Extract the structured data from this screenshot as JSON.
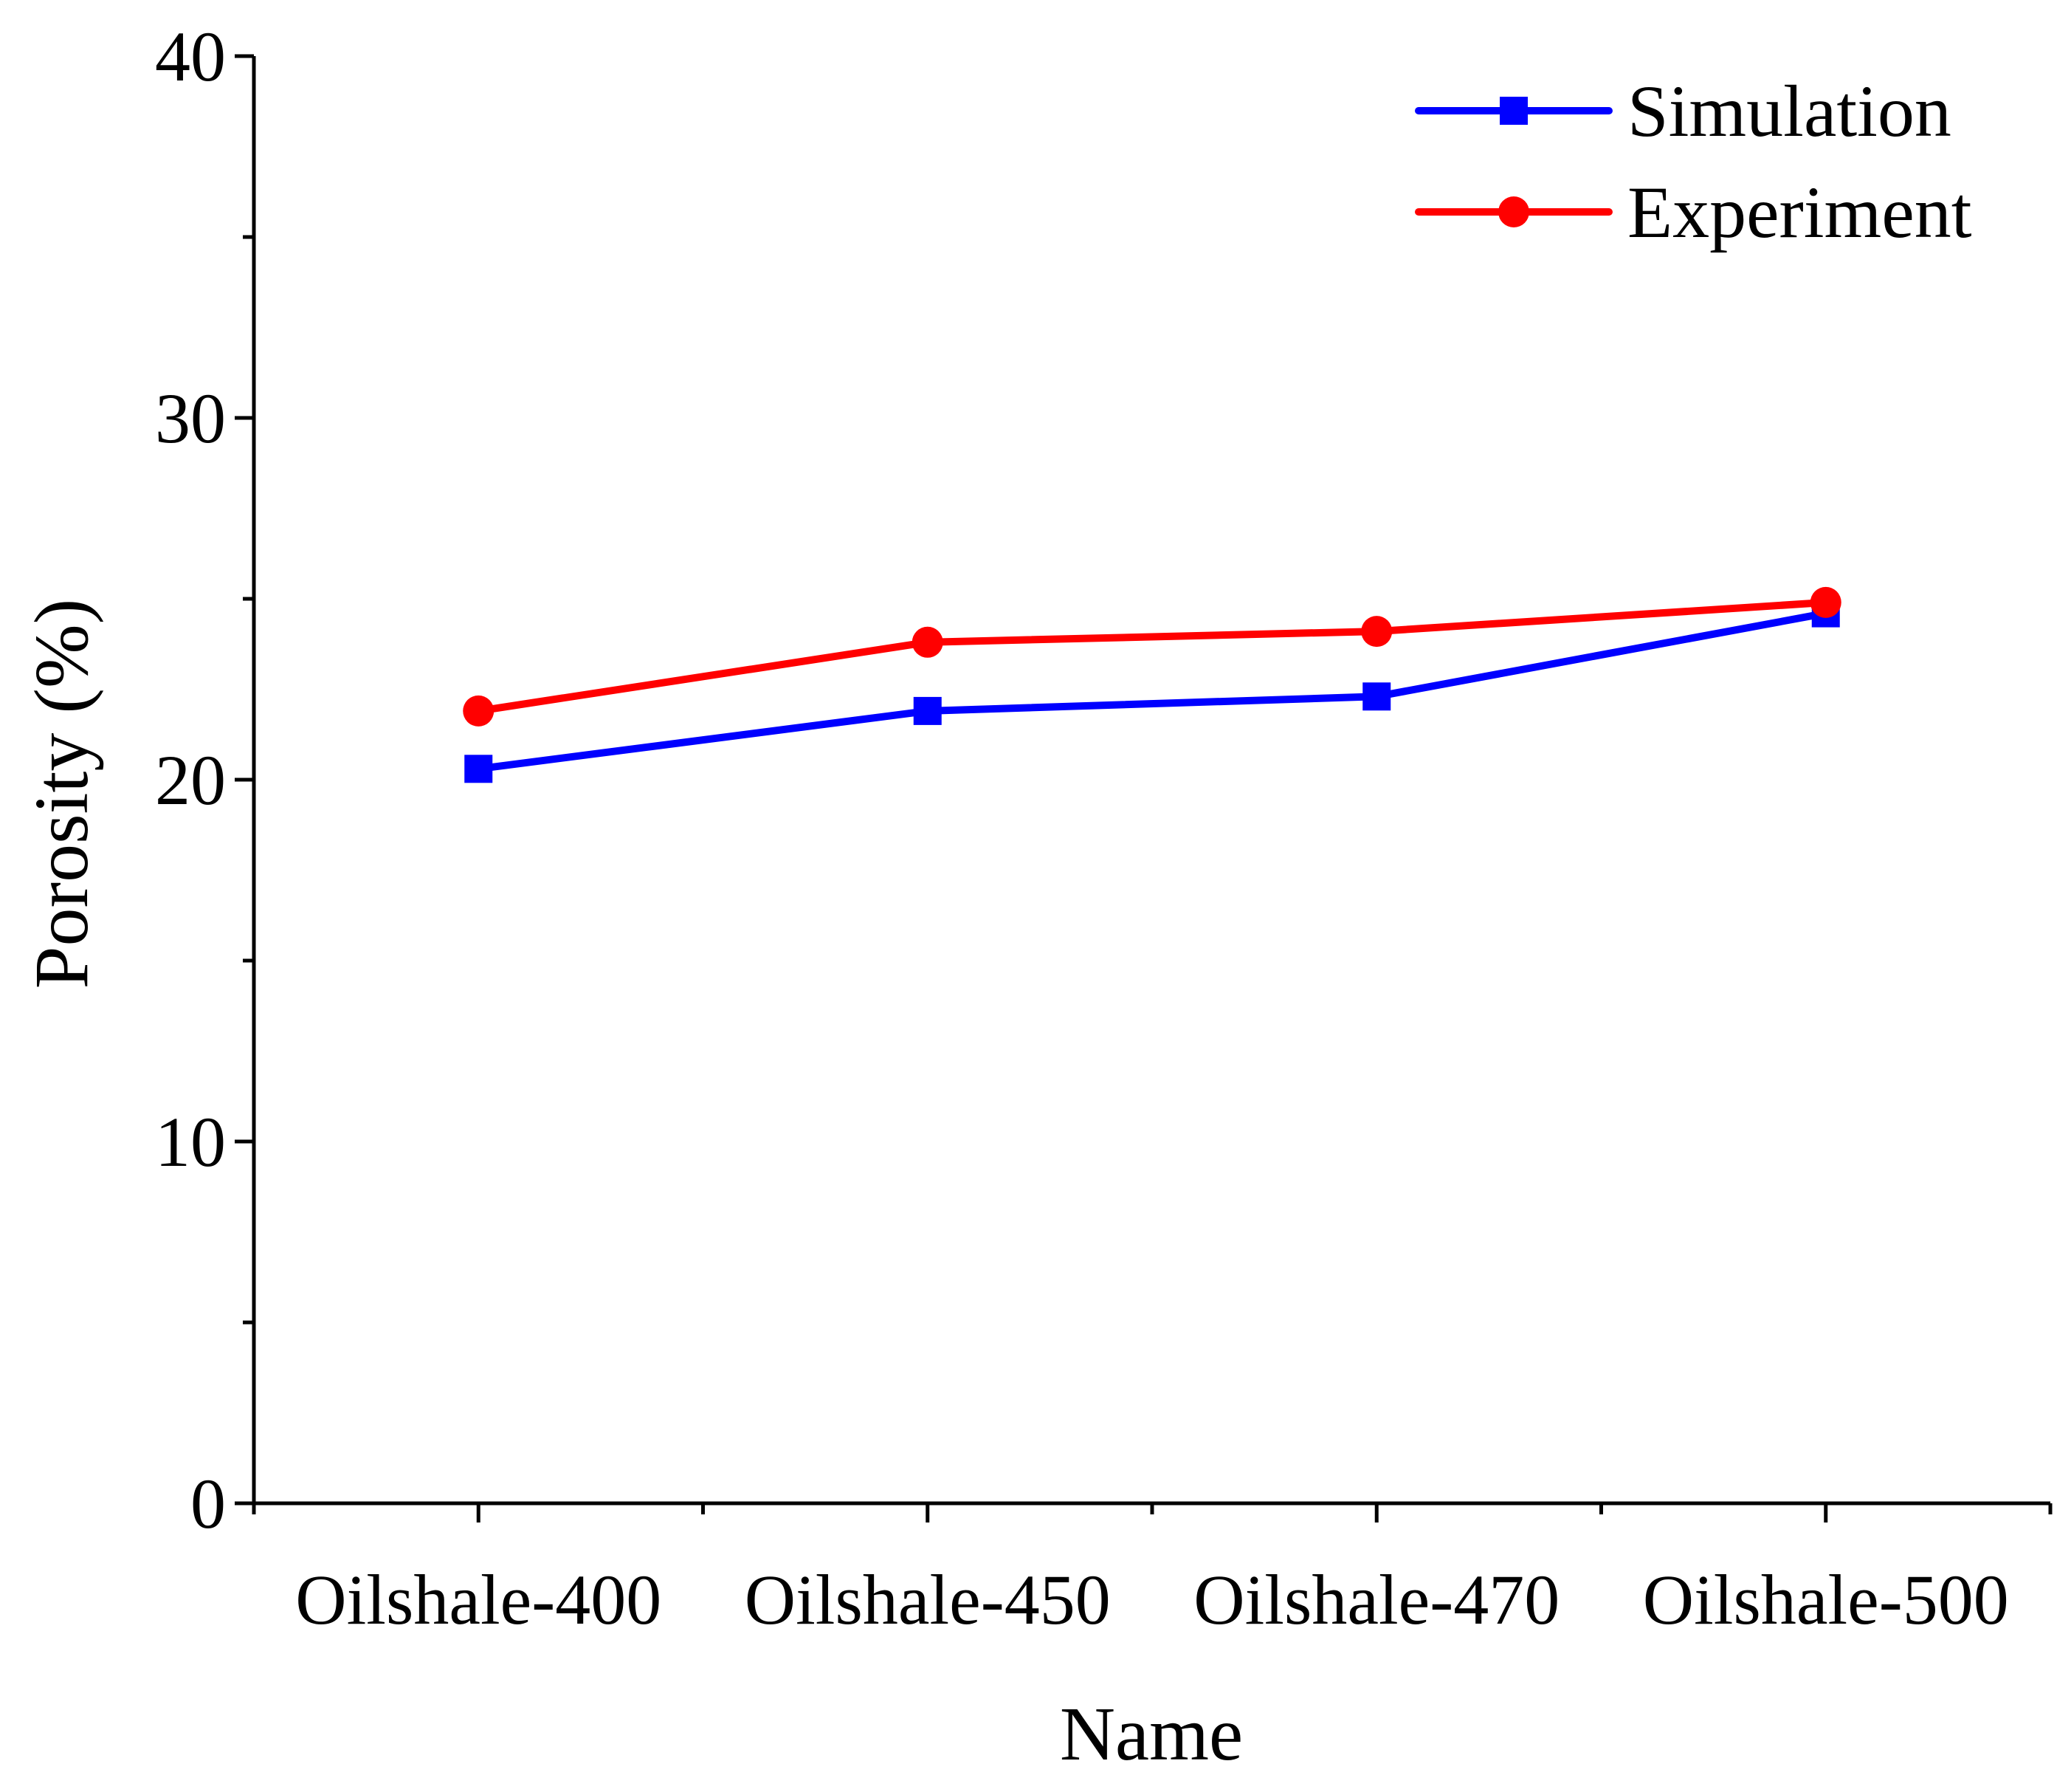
{
  "chart_data": {
    "type": "line",
    "title": "",
    "xlabel": "Name",
    "ylabel": "Porosity (%)",
    "categories": [
      "Oilshale-400",
      "Oilshale-450",
      "Oilshale-470",
      "Oilshale-500"
    ],
    "ylim": [
      0,
      40
    ],
    "y_major_ticks": [
      0,
      10,
      20,
      30,
      40
    ],
    "y_tick_labels": [
      "0",
      "10",
      "20",
      "30",
      "40"
    ],
    "y_minor_ticks": [
      5,
      15,
      25,
      35
    ],
    "grid": false,
    "legend_position": "top-right",
    "series": [
      {
        "name": "Simulation",
        "marker": "square",
        "color": "#0000FF",
        "values": [
          20.3,
          21.9,
          22.3,
          24.6
        ]
      },
      {
        "name": "Experiment",
        "marker": "circle",
        "color": "#FF0000",
        "values": [
          21.9,
          23.8,
          24.1,
          24.9
        ]
      }
    ]
  }
}
